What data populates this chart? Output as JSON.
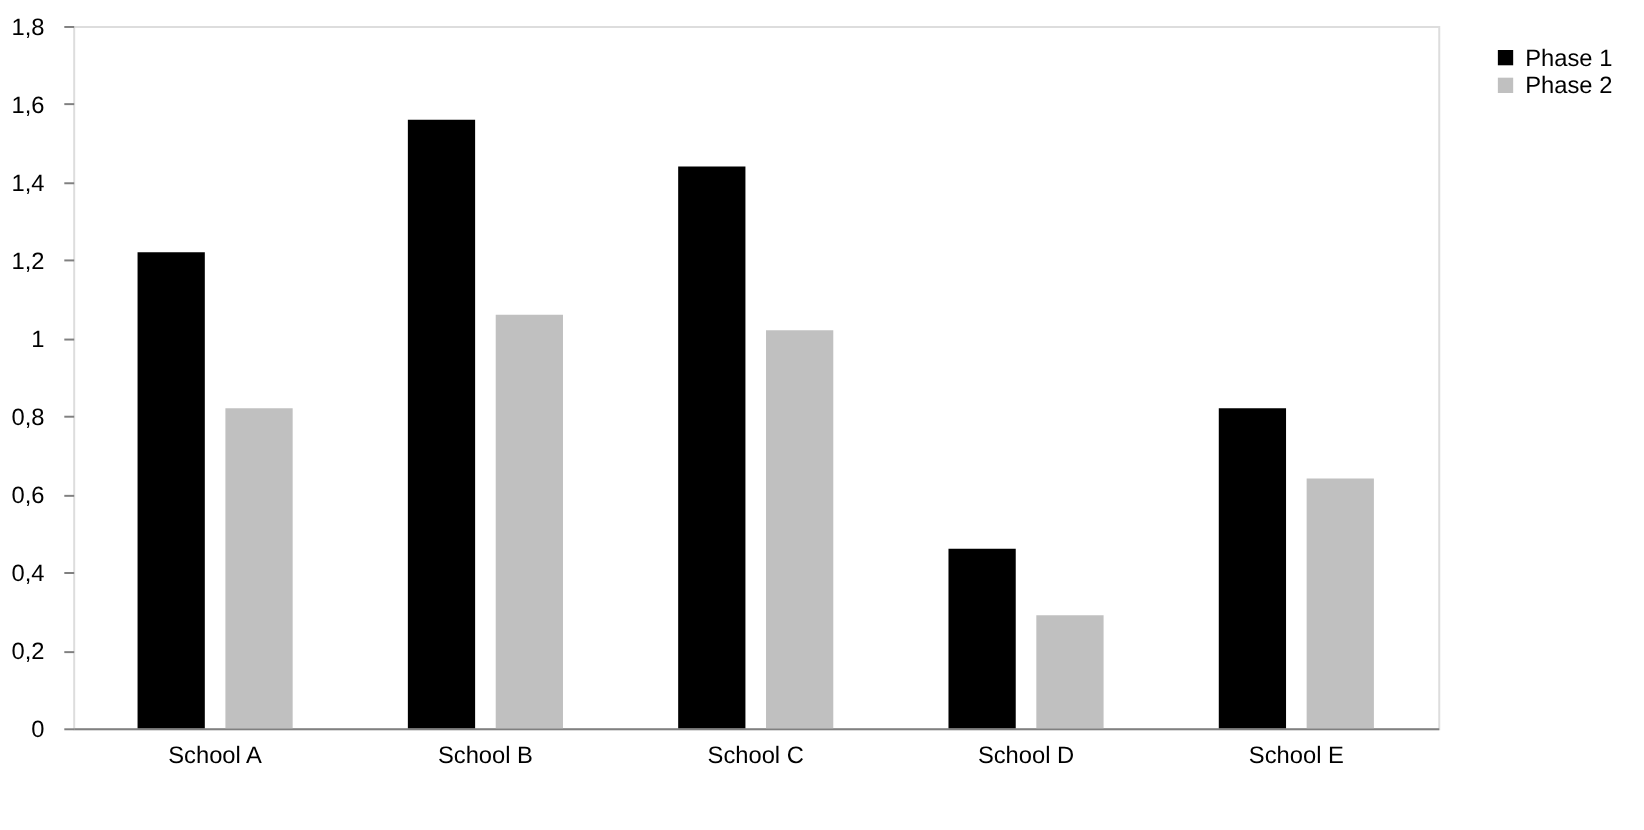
{
  "chart_data": {
    "type": "bar",
    "categories": [
      "School A",
      "School B",
      "School C",
      "School D",
      "School E"
    ],
    "series": [
      {
        "name": "Phase 1",
        "color": "#000000",
        "values": [
          1.22,
          1.56,
          1.44,
          0.46,
          0.82
        ]
      },
      {
        "name": "Phase 2",
        "color": "#c0c0c0",
        "values": [
          0.82,
          1.06,
          1.02,
          0.29,
          0.64
        ]
      }
    ],
    "ylim": [
      0,
      1.8
    ],
    "yticks": [
      0,
      {
        "value": 0.2,
        "label": "0,2"
      },
      {
        "value": 0.4,
        "label": "0,4"
      },
      {
        "value": 0.6,
        "label": "0,6"
      },
      {
        "value": 0.8,
        "label": "0,8"
      },
      1,
      {
        "value": 1.2,
        "label": "1,2"
      },
      {
        "value": 1.4,
        "label": "1,4"
      },
      {
        "value": 1.6,
        "label": "1,6"
      },
      {
        "value": 1.8,
        "label": "1,8"
      }
    ],
    "grid": false,
    "legend": "right"
  }
}
